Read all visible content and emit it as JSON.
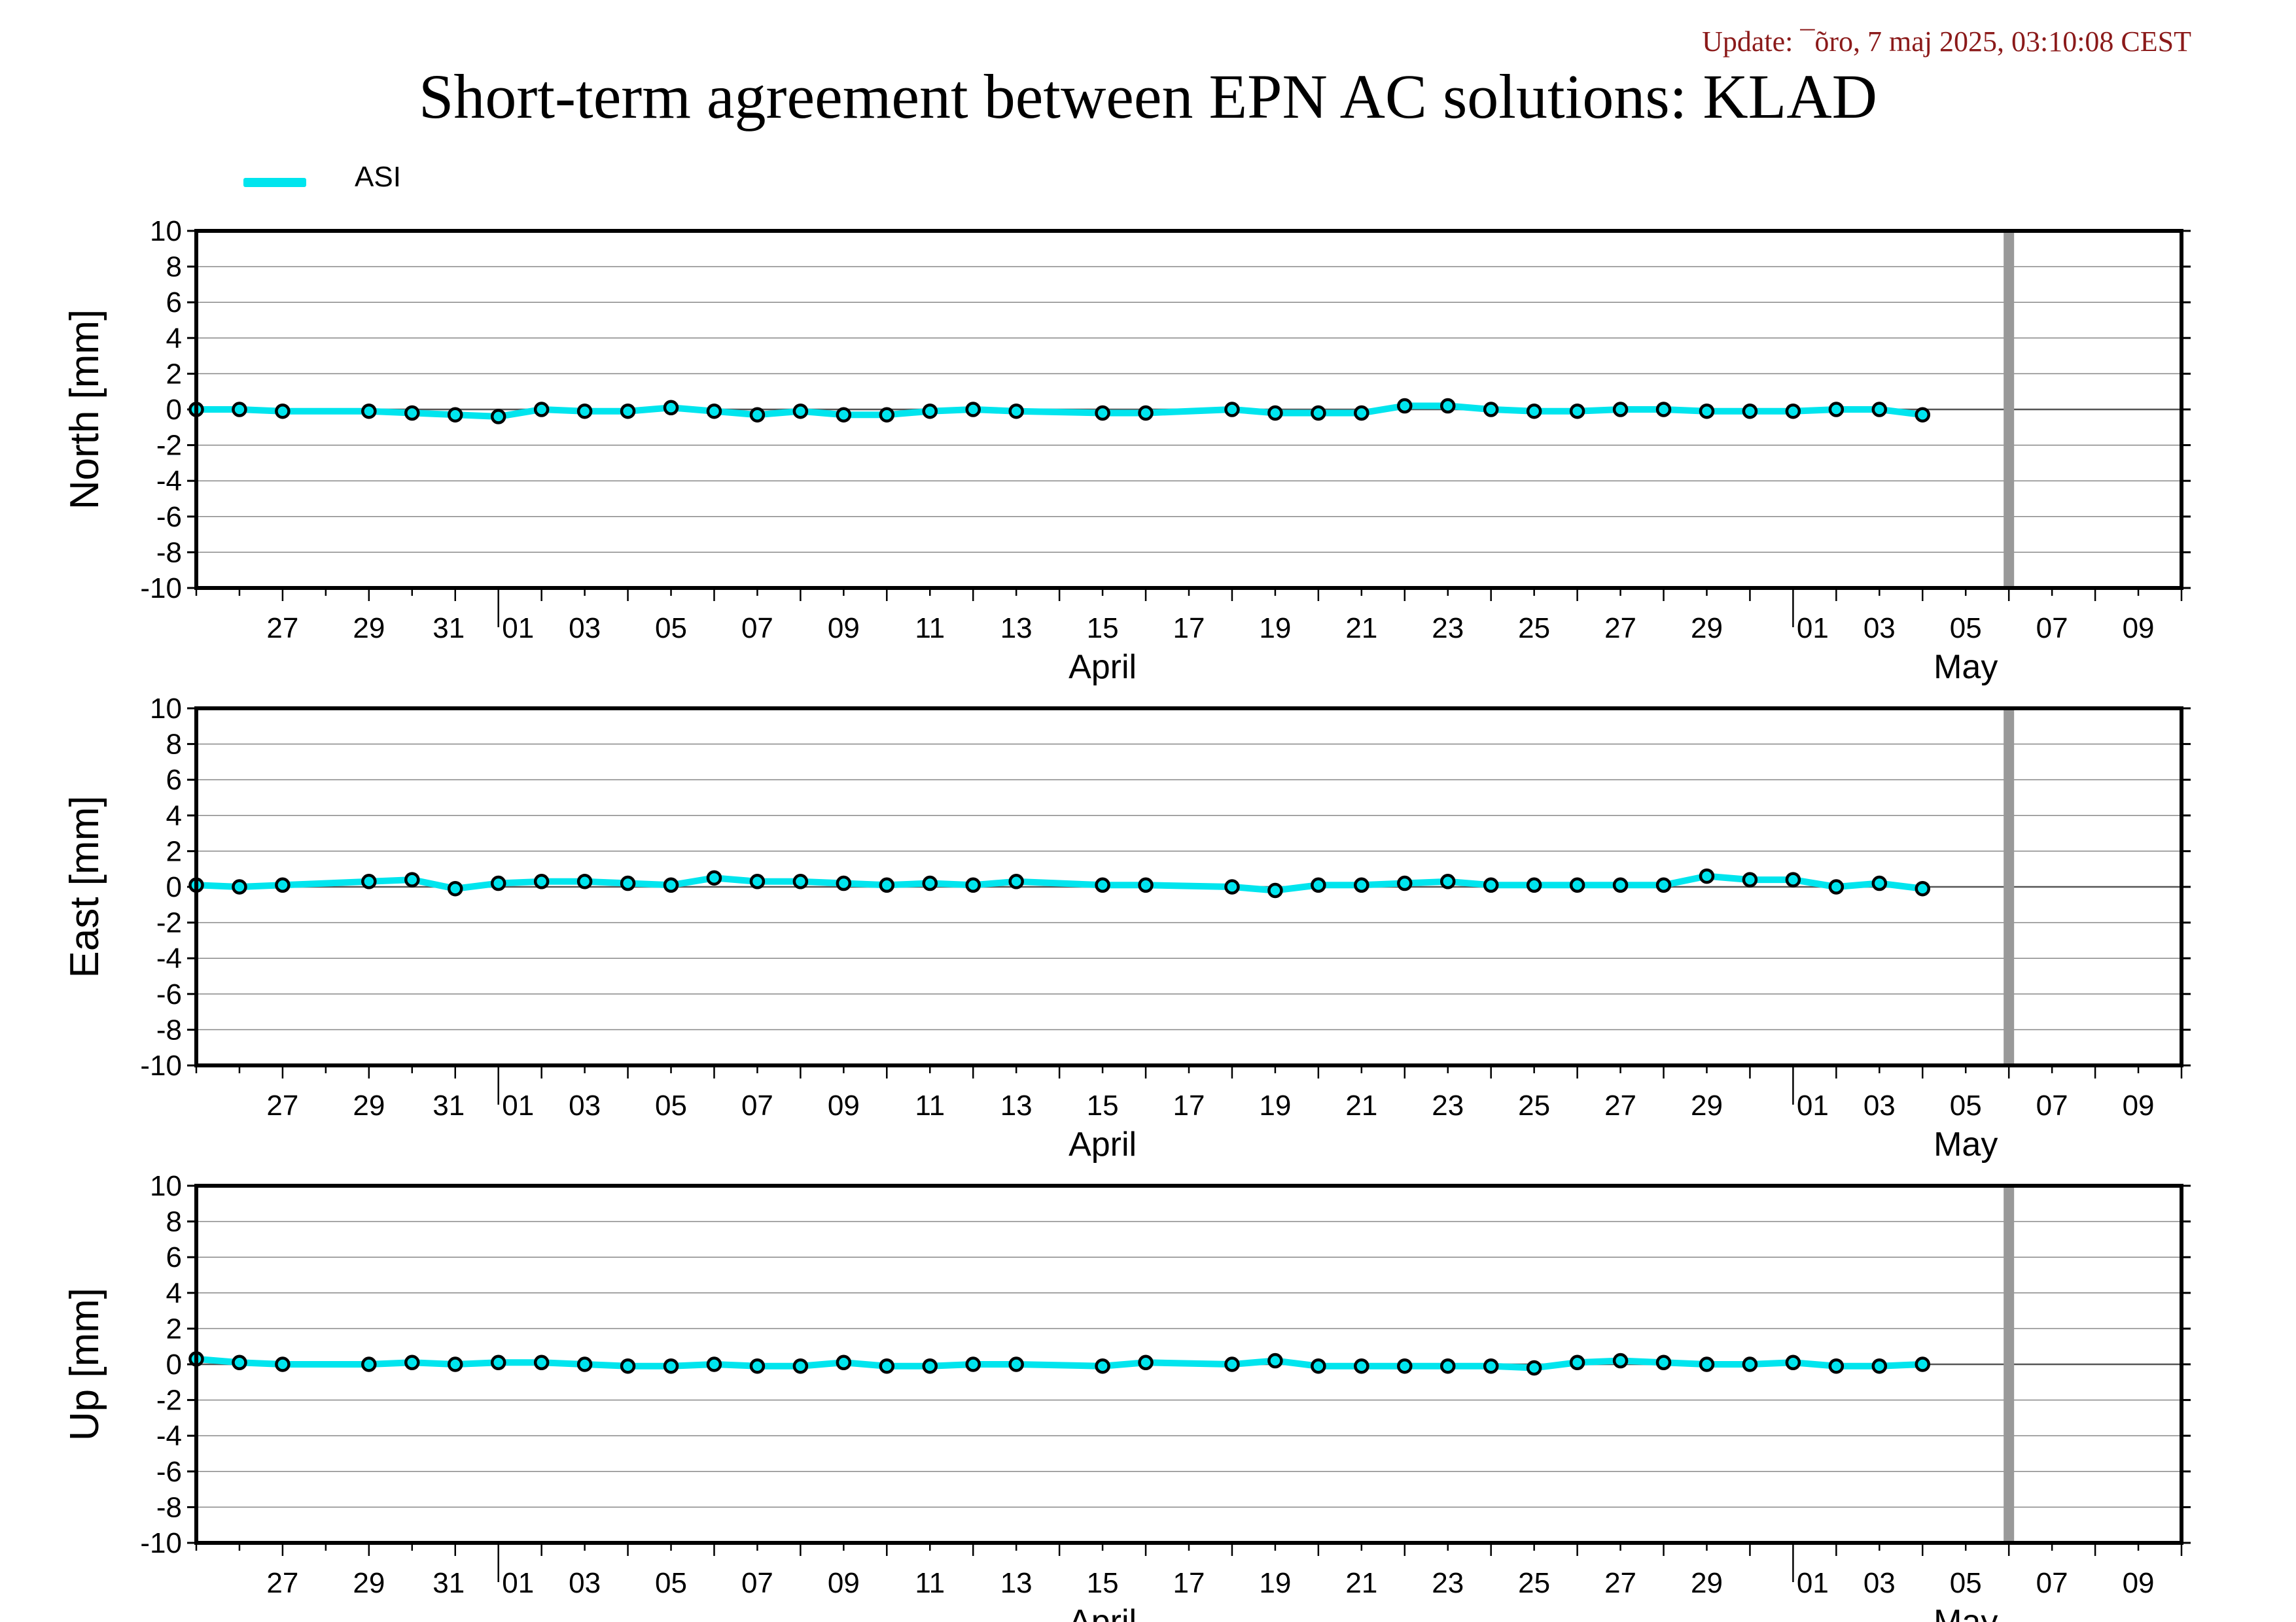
{
  "header": {
    "update_text": "Update: ¯õro, 7 maj 2025, 03:10:08 CEST",
    "title": "Short-term agreement between EPN AC solutions: KLAD"
  },
  "legend": {
    "label": "ASI",
    "color": "#00e5ee"
  },
  "colors": {
    "series": "#00e5ee",
    "marker_edge": "#000000",
    "today_line": "#999999",
    "grid": "#888888"
  },
  "x_axis": {
    "tick_labels": [
      "27",
      "29",
      "31",
      "01",
      "03",
      "05",
      "07",
      "09",
      "11",
      "13",
      "15",
      "17",
      "19",
      "21",
      "23",
      "25",
      "27",
      "29",
      "01",
      "03",
      "05",
      "07",
      "09"
    ],
    "month_labels": [
      {
        "label": "April",
        "center_date": "2025-04-15"
      },
      {
        "label": "May",
        "center_date": "2025-05-05"
      }
    ],
    "today_marker_date": "2025-05-06"
  },
  "chart_data": [
    {
      "type": "line",
      "ylabel": "North [mm]",
      "ylim": [
        -10,
        10
      ],
      "yticks": [
        10,
        8,
        6,
        4,
        2,
        0,
        -2,
        -4,
        -6,
        -8,
        -10
      ],
      "xlim": [
        "2025-03-25",
        "2025-05-10"
      ],
      "grid": true,
      "series": [
        {
          "name": "ASI",
          "x": [
            "2025-03-25",
            "2025-03-26",
            "2025-03-27",
            "2025-03-29",
            "2025-03-30",
            "2025-03-31",
            "2025-04-01",
            "2025-04-02",
            "2025-04-03",
            "2025-04-04",
            "2025-04-05",
            "2025-04-06",
            "2025-04-07",
            "2025-04-08",
            "2025-04-09",
            "2025-04-10",
            "2025-04-11",
            "2025-04-12",
            "2025-04-13",
            "2025-04-15",
            "2025-04-16",
            "2025-04-18",
            "2025-04-19",
            "2025-04-20",
            "2025-04-21",
            "2025-04-22",
            "2025-04-23",
            "2025-04-24",
            "2025-04-25",
            "2025-04-26",
            "2025-04-27",
            "2025-04-28",
            "2025-04-29",
            "2025-04-30",
            "2025-05-01",
            "2025-05-02",
            "2025-05-03",
            "2025-05-04"
          ],
          "values": [
            0.0,
            0.0,
            -0.1,
            -0.1,
            -0.2,
            -0.3,
            -0.4,
            0.0,
            -0.1,
            -0.1,
            0.1,
            -0.1,
            -0.3,
            -0.1,
            -0.3,
            -0.3,
            -0.1,
            0.0,
            -0.1,
            -0.2,
            -0.2,
            0.0,
            -0.2,
            -0.2,
            -0.2,
            0.2,
            0.2,
            0.0,
            -0.1,
            -0.1,
            0.0,
            0.0,
            -0.1,
            -0.1,
            -0.1,
            0.0,
            0.0,
            -0.3
          ]
        }
      ]
    },
    {
      "type": "line",
      "ylabel": "East [mm]",
      "ylim": [
        -10,
        10
      ],
      "yticks": [
        10,
        8,
        6,
        4,
        2,
        0,
        -2,
        -4,
        -6,
        -8,
        -10
      ],
      "xlim": [
        "2025-03-25",
        "2025-05-10"
      ],
      "grid": true,
      "series": [
        {
          "name": "ASI",
          "x": [
            "2025-03-25",
            "2025-03-26",
            "2025-03-27",
            "2025-03-29",
            "2025-03-30",
            "2025-03-31",
            "2025-04-01",
            "2025-04-02",
            "2025-04-03",
            "2025-04-04",
            "2025-04-05",
            "2025-04-06",
            "2025-04-07",
            "2025-04-08",
            "2025-04-09",
            "2025-04-10",
            "2025-04-11",
            "2025-04-12",
            "2025-04-13",
            "2025-04-15",
            "2025-04-16",
            "2025-04-18",
            "2025-04-19",
            "2025-04-20",
            "2025-04-21",
            "2025-04-22",
            "2025-04-23",
            "2025-04-24",
            "2025-04-25",
            "2025-04-26",
            "2025-04-27",
            "2025-04-28",
            "2025-04-29",
            "2025-04-30",
            "2025-05-01",
            "2025-05-02",
            "2025-05-03",
            "2025-05-04"
          ],
          "values": [
            0.1,
            0.0,
            0.1,
            0.3,
            0.4,
            -0.1,
            0.2,
            0.3,
            0.3,
            0.2,
            0.1,
            0.5,
            0.3,
            0.3,
            0.2,
            0.1,
            0.2,
            0.1,
            0.3,
            0.1,
            0.1,
            0.0,
            -0.2,
            0.1,
            0.1,
            0.2,
            0.3,
            0.1,
            0.1,
            0.1,
            0.1,
            0.1,
            0.6,
            0.4,
            0.4,
            0.0,
            0.2,
            -0.1
          ]
        }
      ]
    },
    {
      "type": "line",
      "ylabel": "Up [mm]",
      "ylim": [
        -10,
        10
      ],
      "yticks": [
        10,
        8,
        6,
        4,
        2,
        0,
        -2,
        -4,
        -6,
        -8,
        -10
      ],
      "xlim": [
        "2025-03-25",
        "2025-05-10"
      ],
      "grid": true,
      "series": [
        {
          "name": "ASI",
          "x": [
            "2025-03-25",
            "2025-03-26",
            "2025-03-27",
            "2025-03-29",
            "2025-03-30",
            "2025-03-31",
            "2025-04-01",
            "2025-04-02",
            "2025-04-03",
            "2025-04-04",
            "2025-04-05",
            "2025-04-06",
            "2025-04-07",
            "2025-04-08",
            "2025-04-09",
            "2025-04-10",
            "2025-04-11",
            "2025-04-12",
            "2025-04-13",
            "2025-04-15",
            "2025-04-16",
            "2025-04-18",
            "2025-04-19",
            "2025-04-20",
            "2025-04-21",
            "2025-04-22",
            "2025-04-23",
            "2025-04-24",
            "2025-04-25",
            "2025-04-26",
            "2025-04-27",
            "2025-04-28",
            "2025-04-29",
            "2025-04-30",
            "2025-05-01",
            "2025-05-02",
            "2025-05-03",
            "2025-05-04"
          ],
          "values": [
            0.3,
            0.1,
            0.0,
            0.0,
            0.1,
            0.0,
            0.1,
            0.1,
            0.0,
            -0.1,
            -0.1,
            0.0,
            -0.1,
            -0.1,
            0.1,
            -0.1,
            -0.1,
            0.0,
            0.0,
            -0.1,
            0.1,
            0.0,
            0.2,
            -0.1,
            -0.1,
            -0.1,
            -0.1,
            -0.1,
            -0.2,
            0.1,
            0.2,
            0.1,
            0.0,
            0.0,
            0.1,
            -0.1,
            -0.1,
            0.0
          ]
        }
      ]
    }
  ]
}
